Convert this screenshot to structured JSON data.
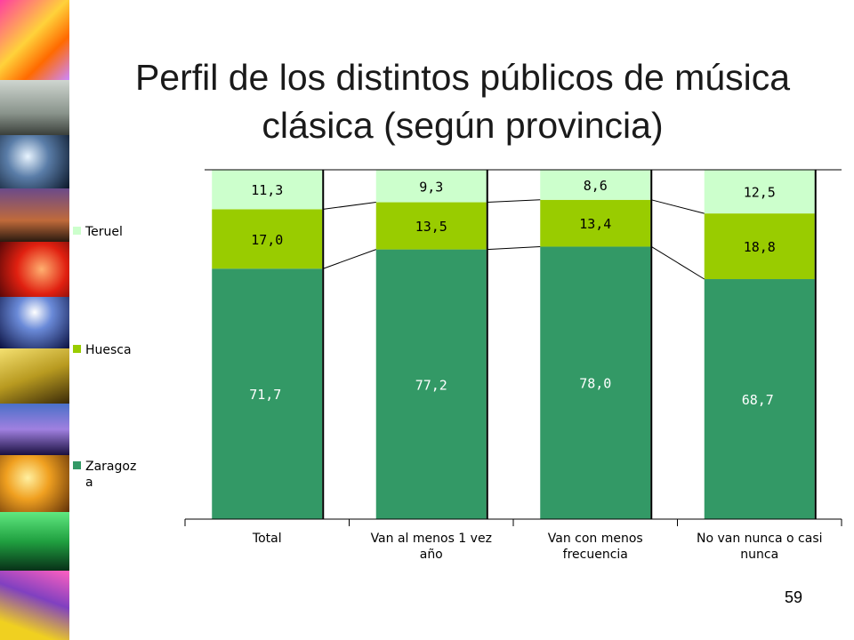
{
  "title_line1": "Perfil de los distintos públicos de música",
  "title_line2": "clásica (según provincia)",
  "page_number": "59",
  "colors": {
    "Zaragoza": "#339966",
    "Huesca": "#99cc00",
    "Teruel": "#ccffcc"
  },
  "chart_data": {
    "type": "bar",
    "stacked": "percent",
    "categories": [
      [
        "Total"
      ],
      [
        "Van al menos 1 vez",
        "año"
      ],
      [
        "Van con menos",
        "frecuencia"
      ],
      [
        "No van nunca o casi",
        "nunca"
      ]
    ],
    "series": [
      {
        "name": "Zaragoza",
        "legend_lines": [
          "Zaragoz",
          "a"
        ],
        "values": [
          71.7,
          77.2,
          78.0,
          68.7
        ],
        "labels": [
          "71,7",
          "77,2",
          "78,0",
          "68,7"
        ]
      },
      {
        "name": "Huesca",
        "legend_lines": [
          "Huesca"
        ],
        "values": [
          17.0,
          13.5,
          13.4,
          18.8
        ],
        "labels": [
          "17,0",
          "13,5",
          "13,4",
          "18,8"
        ]
      },
      {
        "name": "Teruel",
        "legend_lines": [
          "Teruel"
        ],
        "values": [
          11.3,
          9.3,
          8.6,
          12.5
        ],
        "labels": [
          "11,3",
          "9,3",
          "8,6",
          "12,5"
        ]
      }
    ],
    "ylim": [
      0,
      100
    ],
    "legend_position": "left",
    "series_lines": true,
    "grid": false
  }
}
